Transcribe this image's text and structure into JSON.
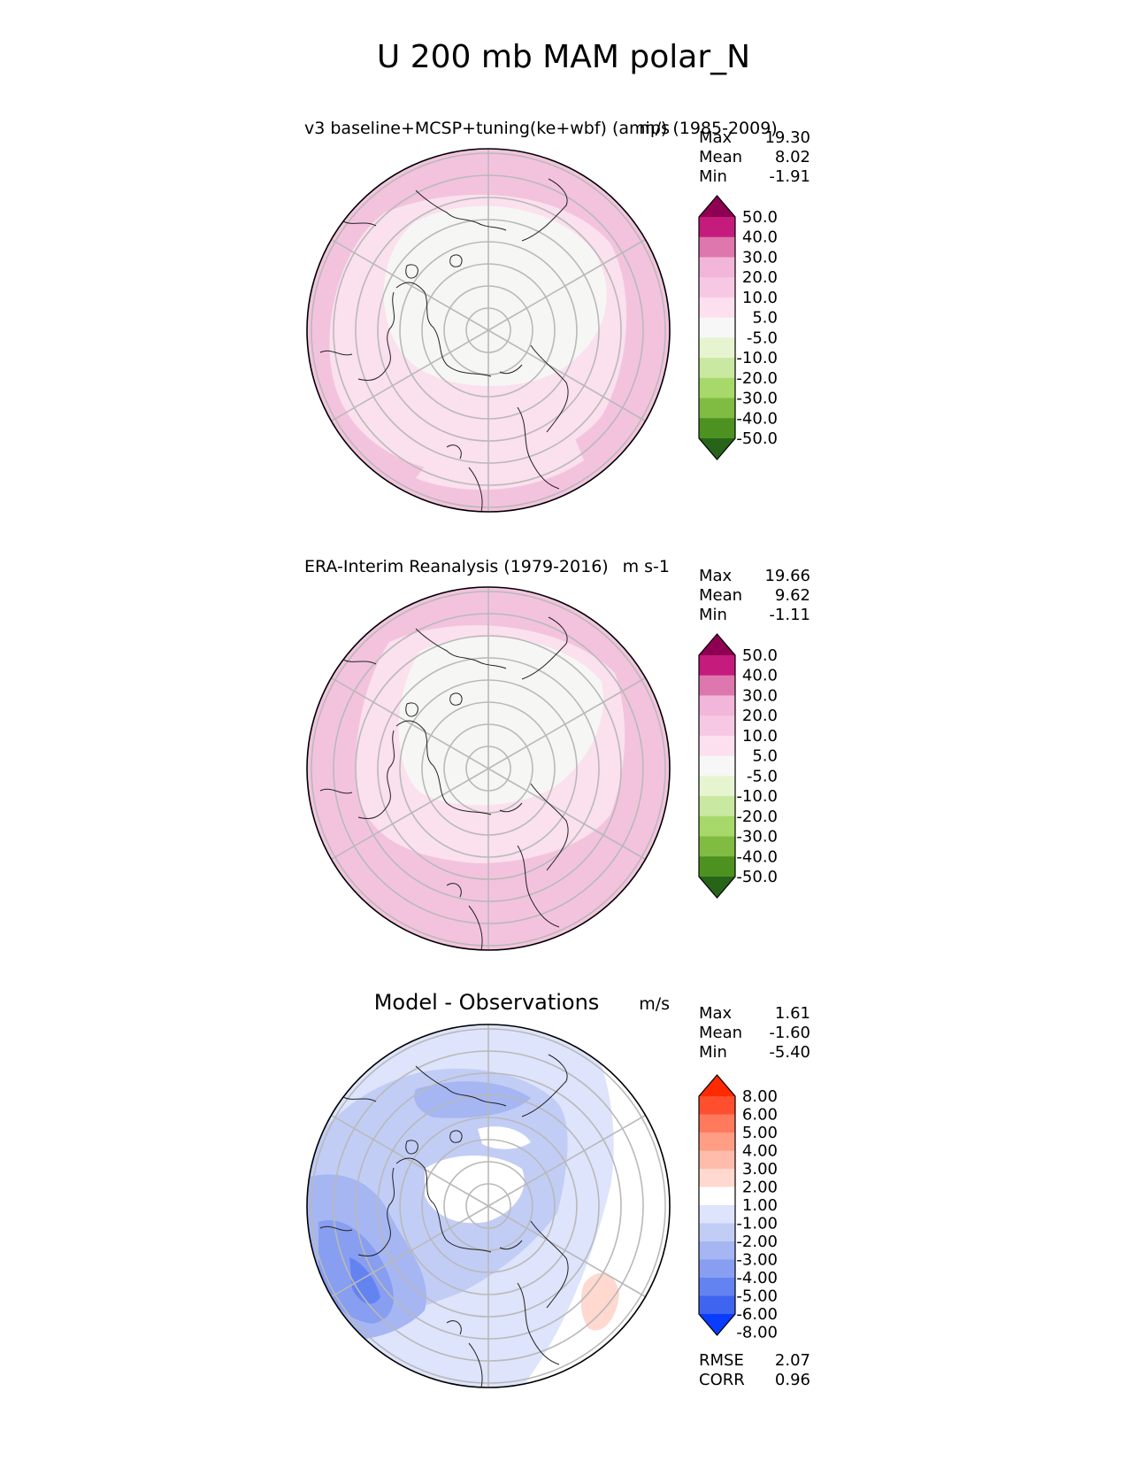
{
  "figure": {
    "title": "U 200 mb MAM polar_N"
  },
  "chart_data": [
    {
      "type": "polar-contour-map",
      "title": "v3 baseline+MCSP+tuning(ke+wbf) (amip) (1985-2009)",
      "units": "m/s",
      "stats": [
        {
          "label": "Max",
          "value": "19.30"
        },
        {
          "label": "Mean",
          "value": "8.02"
        },
        {
          "label": "Min",
          "value": "-1.91"
        }
      ],
      "colorbar": {
        "levels": [
          "50.0",
          "40.0",
          "30.0",
          "20.0",
          "10.0",
          "5.0",
          "-5.0",
          "-10.0",
          "-20.0",
          "-30.0",
          "-40.0",
          "-50.0"
        ],
        "colors": [
          "#8e0152",
          "#c51b7d",
          "#de77ae",
          "#f1b6da",
          "#f7c8e4",
          "#fde0ef",
          "#f7f7f7",
          "#e6f5d0",
          "#c9e8a1",
          "#a6d96a",
          "#7fbc41",
          "#4d9221",
          "#276419"
        ]
      }
    },
    {
      "type": "polar-contour-map",
      "title": "ERA-Interim Reanalysis (1979-2016)",
      "units": "m s-1",
      "stats": [
        {
          "label": "Max",
          "value": "19.66"
        },
        {
          "label": "Mean",
          "value": "9.62"
        },
        {
          "label": "Min",
          "value": "-1.11"
        }
      ],
      "colorbar": {
        "levels": [
          "50.0",
          "40.0",
          "30.0",
          "20.0",
          "10.0",
          "5.0",
          "-5.0",
          "-10.0",
          "-20.0",
          "-30.0",
          "-40.0",
          "-50.0"
        ],
        "colors": [
          "#8e0152",
          "#c51b7d",
          "#de77ae",
          "#f1b6da",
          "#f7c8e4",
          "#fde0ef",
          "#f7f7f7",
          "#e6f5d0",
          "#c9e8a1",
          "#a6d96a",
          "#7fbc41",
          "#4d9221",
          "#276419"
        ]
      }
    },
    {
      "type": "polar-contour-map",
      "title": "Model - Observations",
      "units": "m/s",
      "stats": [
        {
          "label": "Max",
          "value": "1.61"
        },
        {
          "label": "Mean",
          "value": "-1.60"
        },
        {
          "label": "Min",
          "value": "-5.40"
        }
      ],
      "metrics": [
        {
          "label": "RMSE",
          "value": "2.07"
        },
        {
          "label": "CORR",
          "value": "0.96"
        }
      ],
      "colorbar": {
        "levels": [
          "8.00",
          "6.00",
          "5.00",
          "4.00",
          "3.00",
          "2.00",
          "1.00",
          "-1.00",
          "-2.00",
          "-3.00",
          "-4.00",
          "-5.00",
          "-6.00",
          "-8.00"
        ],
        "colors": [
          "#ff2a00",
          "#ff4f2e",
          "#ff7a5c",
          "#ff9d85",
          "#ffbcaa",
          "#ffd8cf",
          "#ffffff",
          "#dde4fb",
          "#c2cdf6",
          "#a5b6f3",
          "#889ef0",
          "#6383f0",
          "#3f64f0",
          "#0a3cff"
        ]
      }
    }
  ]
}
